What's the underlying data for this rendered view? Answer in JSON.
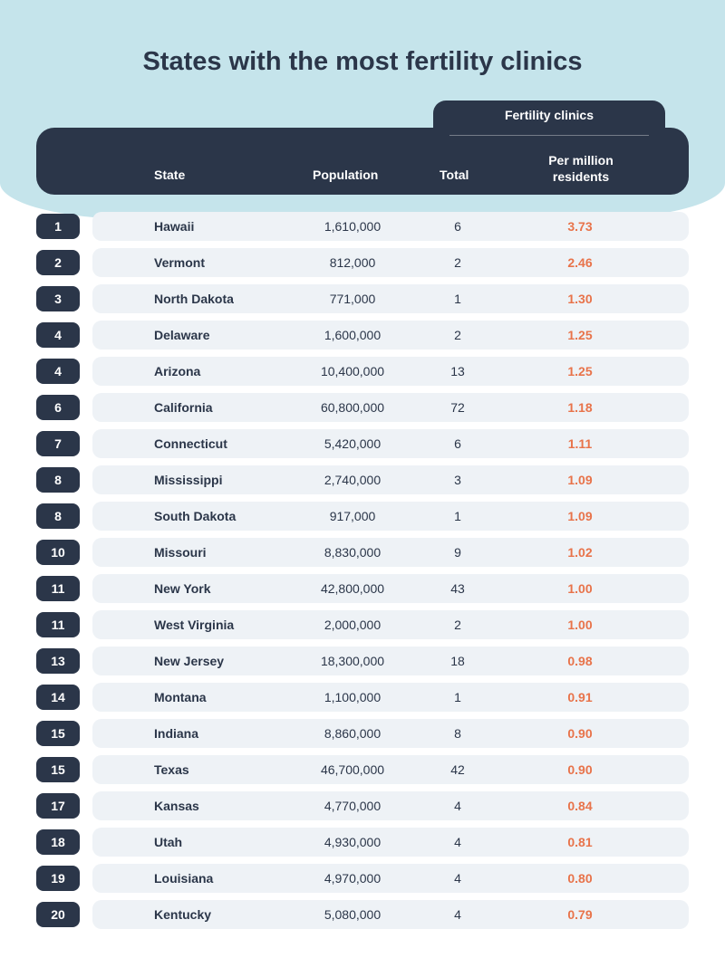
{
  "title": "States with the most fertility clinics",
  "colors": {
    "hero_bg": "#c5e4eb",
    "header_bg": "#2b3649",
    "row_bg": "#eef2f6",
    "text_dark": "#2b3649",
    "text_light": "#ffffff",
    "accent_orange": "#e8734a",
    "page_bg": "#ffffff"
  },
  "headers": {
    "state": "State",
    "population": "Population",
    "fertility_group": "Fertility clinics",
    "total": "Total",
    "per_million": "Per million residents"
  },
  "rows": [
    {
      "rank": "1",
      "state": "Hawaii",
      "population": "1,610,000",
      "total": "6",
      "per_million": "3.73"
    },
    {
      "rank": "2",
      "state": "Vermont",
      "population": "812,000",
      "total": "2",
      "per_million": "2.46"
    },
    {
      "rank": "3",
      "state": "North Dakota",
      "population": "771,000",
      "total": "1",
      "per_million": "1.30"
    },
    {
      "rank": "4",
      "state": "Delaware",
      "population": "1,600,000",
      "total": "2",
      "per_million": "1.25"
    },
    {
      "rank": "4",
      "state": "Arizona",
      "population": "10,400,000",
      "total": "13",
      "per_million": "1.25"
    },
    {
      "rank": "6",
      "state": "California",
      "population": "60,800,000",
      "total": "72",
      "per_million": "1.18"
    },
    {
      "rank": "7",
      "state": "Connecticut",
      "population": "5,420,000",
      "total": "6",
      "per_million": "1.11"
    },
    {
      "rank": "8",
      "state": "Mississippi",
      "population": "2,740,000",
      "total": "3",
      "per_million": "1.09"
    },
    {
      "rank": "8",
      "state": "South Dakota",
      "population": "917,000",
      "total": "1",
      "per_million": "1.09"
    },
    {
      "rank": "10",
      "state": "Missouri",
      "population": "8,830,000",
      "total": "9",
      "per_million": "1.02"
    },
    {
      "rank": "11",
      "state": "New York",
      "population": "42,800,000",
      "total": "43",
      "per_million": "1.00"
    },
    {
      "rank": "11",
      "state": "West Virginia",
      "population": "2,000,000",
      "total": "2",
      "per_million": "1.00"
    },
    {
      "rank": "13",
      "state": "New Jersey",
      "population": "18,300,000",
      "total": "18",
      "per_million": "0.98"
    },
    {
      "rank": "14",
      "state": "Montana",
      "population": "1,100,000",
      "total": "1",
      "per_million": "0.91"
    },
    {
      "rank": "15",
      "state": "Indiana",
      "population": "8,860,000",
      "total": "8",
      "per_million": "0.90"
    },
    {
      "rank": "15",
      "state": "Texas",
      "population": "46,700,000",
      "total": "42",
      "per_million": "0.90"
    },
    {
      "rank": "17",
      "state": "Kansas",
      "population": "4,770,000",
      "total": "4",
      "per_million": "0.84"
    },
    {
      "rank": "18",
      "state": "Utah",
      "population": "4,930,000",
      "total": "4",
      "per_million": "0.81"
    },
    {
      "rank": "19",
      "state": "Louisiana",
      "population": "4,970,000",
      "total": "4",
      "per_million": "0.80"
    },
    {
      "rank": "20",
      "state": "Kentucky",
      "population": "5,080,000",
      "total": "4",
      "per_million": "0.79"
    }
  ]
}
